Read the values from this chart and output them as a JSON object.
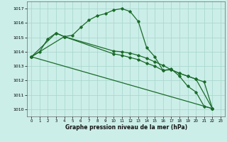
{
  "title": "Graphe pression niveau de la mer (hPa)",
  "background_color": "#cceee8",
  "grid_color": "#aad8d0",
  "line_color": "#1a6b2a",
  "xlim": [
    -0.5,
    23.5
  ],
  "ylim": [
    1009.5,
    1017.5
  ],
  "xticks": [
    0,
    1,
    2,
    3,
    4,
    5,
    6,
    7,
    8,
    9,
    10,
    11,
    12,
    13,
    14,
    15,
    16,
    17,
    18,
    19,
    20,
    21,
    22,
    23
  ],
  "yticks": [
    1010,
    1011,
    1012,
    1013,
    1014,
    1015,
    1016,
    1017
  ],
  "line1_x": [
    0,
    1,
    2,
    3,
    4,
    5,
    6,
    7,
    8,
    9,
    10,
    11,
    12,
    13,
    14,
    15,
    16,
    17,
    18,
    19,
    20,
    21,
    22
  ],
  "line1_y": [
    1013.65,
    1014.0,
    1014.9,
    1015.3,
    1015.05,
    1015.15,
    1015.7,
    1016.2,
    1016.5,
    1016.65,
    1016.9,
    1017.0,
    1016.8,
    1016.1,
    1014.3,
    1013.65,
    1012.7,
    1012.8,
    1012.3,
    1011.6,
    1011.2,
    1010.2,
    1010.05
  ],
  "line2_x": [
    0,
    3,
    4,
    10,
    11,
    12,
    13,
    14,
    15,
    16,
    17,
    18,
    19,
    20,
    21,
    22
  ],
  "line2_y": [
    1013.65,
    1015.3,
    1015.05,
    1014.05,
    1014.0,
    1013.9,
    1013.75,
    1013.55,
    1013.3,
    1013.05,
    1012.75,
    1012.5,
    1012.3,
    1012.1,
    1011.9,
    1010.05
  ],
  "line3_x": [
    0,
    4,
    10,
    11,
    12,
    13,
    14,
    15,
    16,
    17,
    18,
    19,
    20,
    22
  ],
  "line3_y": [
    1013.65,
    1015.05,
    1013.85,
    1013.75,
    1013.6,
    1013.45,
    1013.2,
    1013.0,
    1012.7,
    1012.75,
    1012.5,
    1012.3,
    1012.1,
    1010.05
  ],
  "line4_x": [
    0,
    22
  ],
  "line4_y": [
    1013.65,
    1010.05
  ]
}
